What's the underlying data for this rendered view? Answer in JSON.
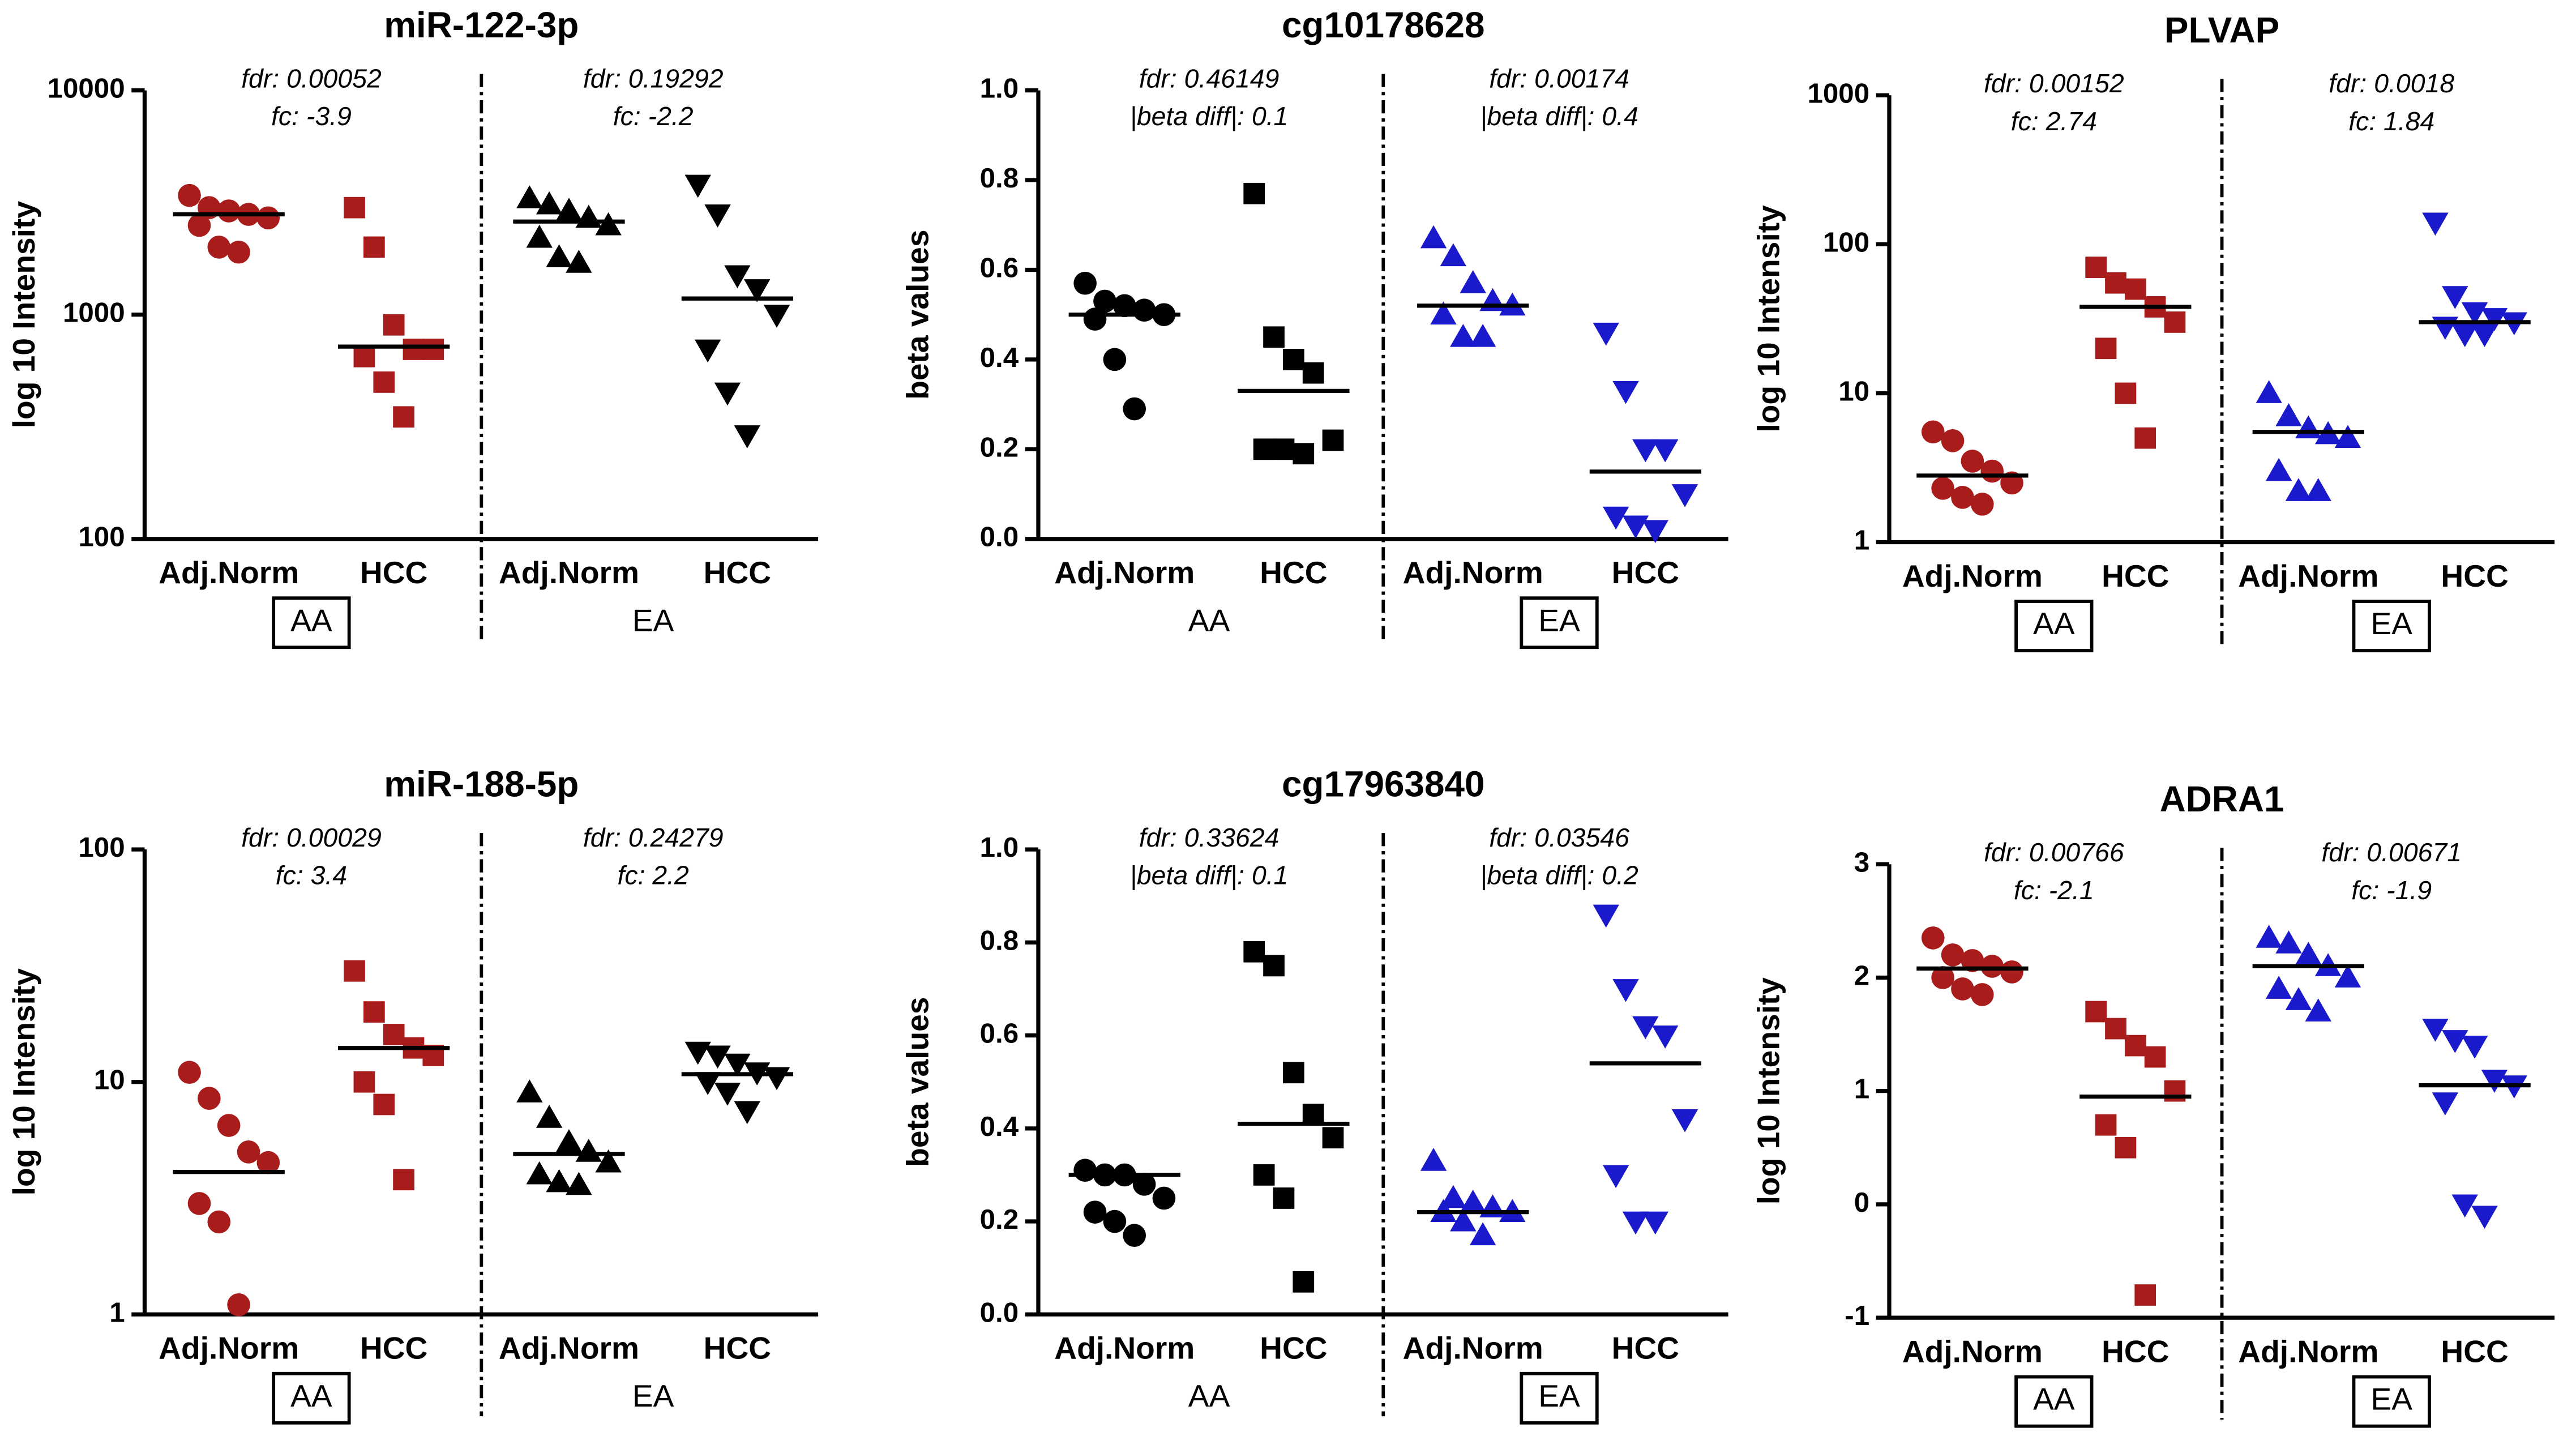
{
  "chart_data": [
    {
      "type": "strip",
      "title": "miR-122-3p",
      "ylabel": "log 10 Intensity",
      "yscale": "log",
      "ylim": [
        100,
        10000
      ],
      "yticks": [
        100,
        1000,
        10000
      ],
      "categories": [
        "Adj.Norm",
        "HCC",
        "Adj.Norm",
        "HCC"
      ],
      "groups": [
        "AA",
        "EA"
      ],
      "boxed": [
        true,
        false
      ],
      "annotations": [
        [
          "fdr: 0.00052",
          "fc: -3.9"
        ],
        [
          "fdr: 0.19292",
          "fc: -2.2"
        ]
      ],
      "series": [
        {
          "color": "#a81c1c",
          "marker": "circle",
          "values": [
            3400,
            3000,
            2900,
            2800,
            2700,
            2500,
            2000,
            1900
          ],
          "median": 2800
        },
        {
          "color": "#a81c1c",
          "marker": "square",
          "values": [
            3000,
            2000,
            900,
            700,
            700,
            650,
            500,
            350
          ],
          "median": 720
        },
        {
          "color": "#000000",
          "marker": "triangle",
          "values": [
            3300,
            3100,
            2900,
            2700,
            2500,
            2200,
            1800,
            1700
          ],
          "median": 2600
        },
        {
          "color": "#000000",
          "marker": "triangle-down",
          "values": [
            3800,
            2800,
            1500,
            1300,
            1000,
            700,
            450,
            290
          ],
          "median": 1180
        }
      ]
    },
    {
      "type": "strip",
      "title": "cg10178628",
      "ylabel": "beta values",
      "yscale": "linear",
      "ylim": [
        0,
        1
      ],
      "yticks": [
        {
          "value": 0,
          "label": "0.0"
        },
        0.2,
        0.4,
        0.6,
        0.8,
        {
          "value": 1,
          "label": "1.0"
        }
      ],
      "categories": [
        "Adj.Norm",
        "HCC",
        "Adj.Norm",
        "HCC"
      ],
      "groups": [
        "AA",
        "EA"
      ],
      "boxed": [
        false,
        true
      ],
      "annotations": [
        [
          "fdr: 0.46149",
          "|beta diff|: 0.1"
        ],
        [
          "fdr: 0.00174",
          "|beta diff|: 0.4"
        ]
      ],
      "series": [
        {
          "color": "#000000",
          "marker": "circle",
          "values": [
            0.57,
            0.53,
            0.52,
            0.51,
            0.5,
            0.49,
            0.4,
            0.29
          ],
          "median": 0.5
        },
        {
          "color": "#000000",
          "marker": "square",
          "values": [
            0.77,
            0.45,
            0.4,
            0.37,
            0.22,
            0.2,
            0.2,
            0.19
          ],
          "median": 0.33
        },
        {
          "color": "#1a1acc",
          "marker": "triangle",
          "values": [
            0.67,
            0.63,
            0.57,
            0.53,
            0.52,
            0.5,
            0.45,
            0.45
          ],
          "median": 0.52
        },
        {
          "color": "#1a1acc",
          "marker": "triangle-down",
          "values": [
            0.46,
            0.33,
            0.2,
            0.2,
            0.1,
            0.05,
            0.03,
            0.02
          ],
          "median": 0.15
        }
      ]
    },
    {
      "type": "strip",
      "title": "PLVAP",
      "ylabel": "log 10 Intensity",
      "yscale": "log",
      "ylim": [
        1,
        1000
      ],
      "yticks": [
        1,
        10,
        100,
        1000
      ],
      "categories": [
        "Adj.Norm",
        "HCC",
        "Adj.Norm",
        "HCC"
      ],
      "groups": [
        "AA",
        "EA"
      ],
      "boxed": [
        true,
        true
      ],
      "annotations": [
        [
          "fdr: 0.00152",
          "fc: 2.74"
        ],
        [
          "fdr: 0.0018",
          "fc: 1.84"
        ]
      ],
      "series": [
        {
          "color": "#a81c1c",
          "marker": "circle",
          "values": [
            5.5,
            4.8,
            3.5,
            3,
            2.5,
            2.3,
            2,
            1.8
          ],
          "median": 2.8
        },
        {
          "color": "#a81c1c",
          "marker": "square",
          "values": [
            70,
            55,
            50,
            38,
            30,
            20,
            10,
            5
          ],
          "median": 38
        },
        {
          "color": "#1a1acc",
          "marker": "triangle",
          "values": [
            10,
            7,
            5.8,
            5.3,
            5,
            3,
            2.2,
            2.2
          ],
          "median": 5.5
        },
        {
          "color": "#1a1acc",
          "marker": "triangle-down",
          "values": [
            140,
            45,
            35,
            32,
            30,
            28,
            25,
            25
          ],
          "median": 30
        }
      ]
    },
    {
      "type": "strip",
      "title": "miR-188-5p",
      "ylabel": "log 10 Intensity",
      "yscale": "log",
      "ylim": [
        1,
        100
      ],
      "yticks": [
        1,
        10,
        100
      ],
      "categories": [
        "Adj.Norm",
        "HCC",
        "Adj.Norm",
        "HCC"
      ],
      "groups": [
        "AA",
        "EA"
      ],
      "boxed": [
        true,
        false
      ],
      "annotations": [
        [
          "fdr: 0.00029",
          "fc: 3.4"
        ],
        [
          "fdr: 0.24279",
          "fc: 2.2"
        ]
      ],
      "series": [
        {
          "color": "#a81c1c",
          "marker": "circle",
          "values": [
            11,
            8.5,
            6.5,
            5,
            4.5,
            3,
            2.5,
            1.1
          ],
          "median": 4.1
        },
        {
          "color": "#a81c1c",
          "marker": "square",
          "values": [
            30,
            20,
            16,
            14,
            13,
            10,
            8,
            3.8
          ],
          "median": 14
        },
        {
          "color": "#000000",
          "marker": "triangle",
          "values": [
            9,
            7,
            5.5,
            5,
            4.5,
            4,
            3.7,
            3.6
          ],
          "median": 4.9
        },
        {
          "color": "#000000",
          "marker": "triangle-down",
          "values": [
            13.5,
            13,
            12,
            11,
            10.5,
            10,
            9,
            7.5
          ],
          "median": 10.8
        }
      ]
    },
    {
      "type": "strip",
      "title": "cg17963840",
      "ylabel": "beta values",
      "yscale": "linear",
      "ylim": [
        0,
        1
      ],
      "yticks": [
        {
          "value": 0,
          "label": "0.0"
        },
        0.2,
        0.4,
        0.6,
        0.8,
        {
          "value": 1,
          "label": "1.0"
        }
      ],
      "categories": [
        "Adj.Norm",
        "HCC",
        "Adj.Norm",
        "HCC"
      ],
      "groups": [
        "AA",
        "EA"
      ],
      "boxed": [
        false,
        true
      ],
      "annotations": [
        [
          "fdr: 0.33624",
          "|beta diff|: 0.1"
        ],
        [
          "fdr: 0.03546",
          "|beta diff|: 0.2"
        ]
      ],
      "series": [
        {
          "color": "#000000",
          "marker": "circle",
          "values": [
            0.31,
            0.3,
            0.3,
            0.28,
            0.25,
            0.22,
            0.2,
            0.17
          ],
          "median": 0.3
        },
        {
          "color": "#000000",
          "marker": "square",
          "values": [
            0.78,
            0.75,
            0.52,
            0.43,
            0.38,
            0.3,
            0.25,
            0.07
          ],
          "median": 0.41
        },
        {
          "color": "#1a1acc",
          "marker": "triangle",
          "values": [
            0.33,
            0.25,
            0.24,
            0.23,
            0.22,
            0.22,
            0.2,
            0.17
          ],
          "median": 0.22
        },
        {
          "color": "#1a1acc",
          "marker": "triangle-down",
          "values": [
            0.86,
            0.7,
            0.62,
            0.6,
            0.42,
            0.3,
            0.2,
            0.2
          ],
          "median": 0.54
        }
      ]
    },
    {
      "type": "strip",
      "title": "ADRA1",
      "ylabel": "log 10 Intensity",
      "yscale": "linear",
      "ylim": [
        -1,
        3
      ],
      "yticks": [
        -1,
        0,
        1,
        2,
        3
      ],
      "categories": [
        "Adj.Norm",
        "HCC",
        "Adj.Norm",
        "HCC"
      ],
      "groups": [
        "AA",
        "EA"
      ],
      "boxed": [
        true,
        true
      ],
      "annotations": [
        [
          "fdr: 0.00766",
          "fc: -2.1"
        ],
        [
          "fdr: 0.00671",
          "fc: -1.9"
        ]
      ],
      "series": [
        {
          "color": "#a81c1c",
          "marker": "circle",
          "values": [
            2.35,
            2.2,
            2.15,
            2.1,
            2.05,
            2,
            1.9,
            1.85
          ],
          "median": 2.08
        },
        {
          "color": "#a81c1c",
          "marker": "square",
          "values": [
            1.7,
            1.55,
            1.4,
            1.3,
            1,
            0.7,
            0.5,
            -0.8
          ],
          "median": 0.95
        },
        {
          "color": "#1a1acc",
          "marker": "triangle",
          "values": [
            2.35,
            2.3,
            2.2,
            2.1,
            2,
            1.9,
            1.8,
            1.7
          ],
          "median": 2.1
        },
        {
          "color": "#1a1acc",
          "marker": "triangle-down",
          "values": [
            1.55,
            1.45,
            1.4,
            1.1,
            1.05,
            0.9,
            0,
            -0.1
          ],
          "median": 1.05
        }
      ]
    }
  ]
}
